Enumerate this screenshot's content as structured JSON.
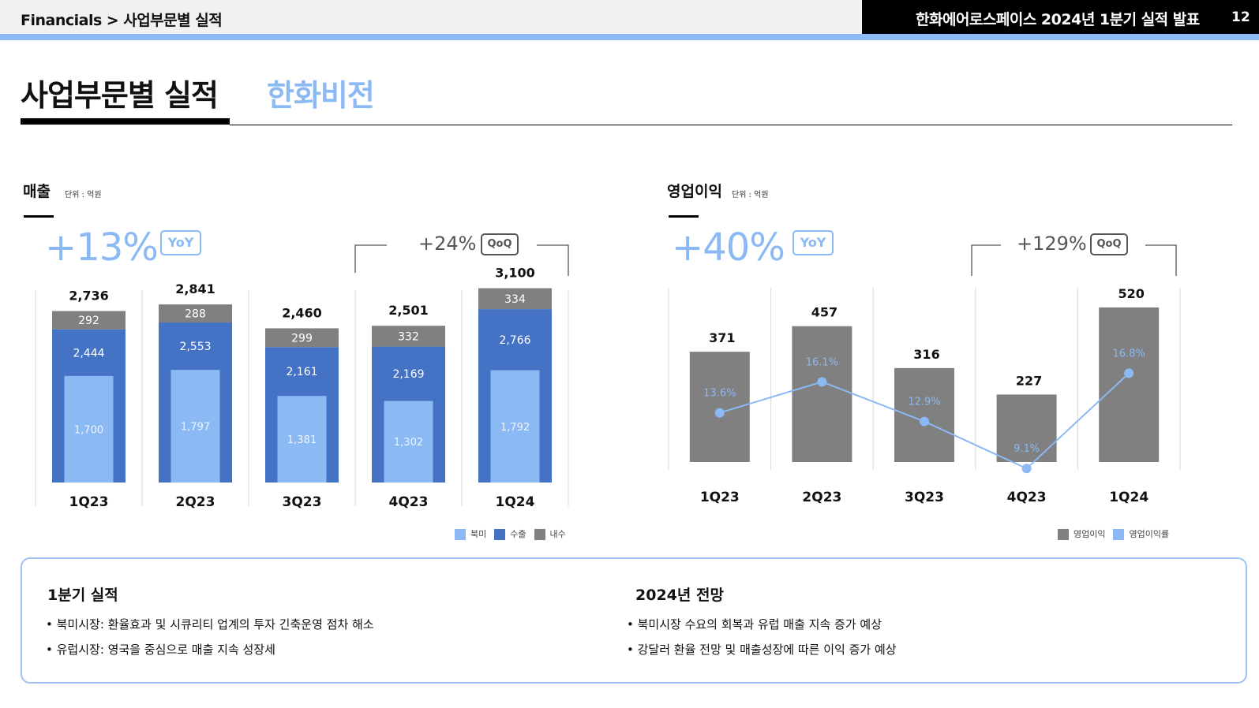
{
  "header": {
    "breadcrumb_root": "Financials",
    "breadcrumb_sep": ">",
    "breadcrumb_page": "사업부문별 실적",
    "deck_title": "한화에어로스페이스 2024년 1분기 실적 발표",
    "page_number": "12"
  },
  "page": {
    "title": "사업부문별 실적",
    "subtitle": "한화비전"
  },
  "revenue": {
    "title": "매출",
    "unit": "단위 : 억원",
    "yoy_value": "+13%",
    "yoy_label": "YoY",
    "qoq_value": "+24%",
    "qoq_label": "QoQ"
  },
  "op_profit": {
    "title": "영업이익",
    "unit": "단위 : 억원",
    "yoy_value": "+40%",
    "yoy_label": "YoY",
    "qoq_value": "+129%",
    "qoq_label": "QoQ"
  },
  "chart_data": [
    {
      "type": "bar",
      "stacked": true,
      "categories": [
        "1Q23",
        "2Q23",
        "3Q23",
        "4Q23",
        "1Q24"
      ],
      "totals": [
        "2,736",
        "2,841",
        "2,460",
        "2,501",
        "3,100"
      ],
      "total_values": [
        2736,
        2841,
        2460,
        2501,
        3100
      ],
      "series": [
        {
          "name": "수출",
          "color": "#4472c4",
          "values": [
            2444,
            2553,
            2161,
            2169,
            2766
          ],
          "labels": [
            "2,444",
            "2,553",
            "2,161",
            "2,169",
            "2,766"
          ]
        },
        {
          "name": "내수",
          "color": "#808080",
          "values": [
            292,
            288,
            299,
            332,
            334
          ],
          "labels": [
            "292",
            "288",
            "299",
            "332",
            "334"
          ]
        }
      ],
      "inner_series": {
        "name": "북미",
        "color": "#8bb9f4",
        "values": [
          1700,
          1797,
          1381,
          1302,
          1792
        ],
        "labels": [
          "1,700",
          "1,797",
          "1,381",
          "1,302",
          "1,792"
        ]
      },
      "legend": [
        "북미",
        "수출",
        "내수"
      ],
      "legend_colors": [
        "#8bb9f4",
        "#4472c4",
        "#808080"
      ],
      "ylim": [
        0,
        3100
      ]
    },
    {
      "type": "bar",
      "categories": [
        "1Q23",
        "2Q23",
        "3Q23",
        "4Q23",
        "1Q24"
      ],
      "series": [
        {
          "name": "영업이익",
          "color": "#808080",
          "values": [
            371,
            457,
            316,
            227,
            520
          ],
          "labels": [
            "371",
            "457",
            "316",
            "227",
            "520"
          ]
        },
        {
          "name": "영업이익률",
          "type": "line",
          "color": "#8bb9f4",
          "values": [
            13.6,
            16.1,
            12.9,
            9.1,
            16.8
          ],
          "labels": [
            "13.6%",
            "16.1%",
            "12.9%",
            "9.1%",
            "16.8%"
          ]
        }
      ],
      "legend": [
        "영업이익",
        "영업이익률"
      ],
      "legend_colors": [
        "#808080",
        "#8bb9f4"
      ],
      "ylim": [
        0,
        520
      ]
    }
  ],
  "summary": {
    "q1_title": "1분기 실적",
    "q1_items": [
      "• 북미시장: 환율효과 및 시큐리티 업계의 투자 긴축운영 점차 해소",
      "• 유럽시장: 영국을 중심으로 매출 지속 성장세"
    ],
    "outlook_title": "2024년 전망",
    "outlook_items": [
      "• 북미시장 수요의 회복과 유럽 매출 지속 증가 예상",
      "• 강달러 환율 전망 및 매출성장에 따른 이익 증가 예상"
    ]
  }
}
